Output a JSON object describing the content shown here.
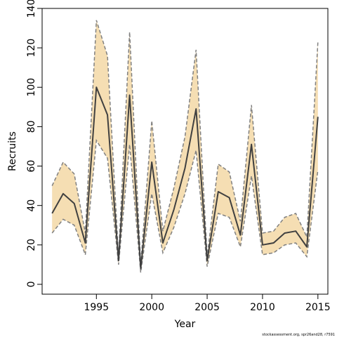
{
  "chart_data": {
    "type": "line",
    "xlabel": "Year",
    "ylabel": "Recruits",
    "xlim": [
      1990.1,
      2015.9
    ],
    "ylim": [
      -5,
      140
    ],
    "xticks": [
      1995,
      2000,
      2005,
      2010,
      2015
    ],
    "yticks": [
      0,
      20,
      40,
      60,
      80,
      100,
      120,
      140
    ],
    "grid": false,
    "legend": "none",
    "colors": {
      "band": "#f5deb3",
      "bound": "#808080",
      "estimate": "#404040"
    },
    "x": [
      1991,
      1992,
      1993,
      1994,
      1995,
      1996,
      1997,
      1998,
      1999,
      2000,
      2001,
      2002,
      2003,
      2004,
      2005,
      2006,
      2007,
      2008,
      2009,
      2010,
      2011,
      2012,
      2013,
      2014,
      2015
    ],
    "series": [
      {
        "role": "estimate",
        "values": [
          36,
          46,
          41,
          21,
          100,
          86,
          12,
          96,
          8,
          62,
          21,
          38,
          59,
          89,
          12,
          47,
          44,
          25,
          71,
          20,
          21,
          26,
          27,
          19,
          85
        ]
      },
      {
        "role": "upper",
        "values": [
          50,
          62,
          56,
          26,
          134,
          116,
          14,
          128,
          10,
          83,
          27,
          49,
          75,
          119,
          14,
          61,
          57,
          32,
          91,
          26,
          27,
          34,
          36,
          24,
          123
        ]
      },
      {
        "role": "lower",
        "values": [
          26,
          33,
          30,
          15,
          73,
          64,
          10,
          71,
          6,
          46,
          16,
          29,
          46,
          68,
          9,
          36,
          34,
          19,
          55,
          15,
          16,
          20,
          21,
          14,
          58
        ]
      }
    ]
  },
  "footer": {
    "text": "stockassessment.org, spr26and28, r7591"
  }
}
